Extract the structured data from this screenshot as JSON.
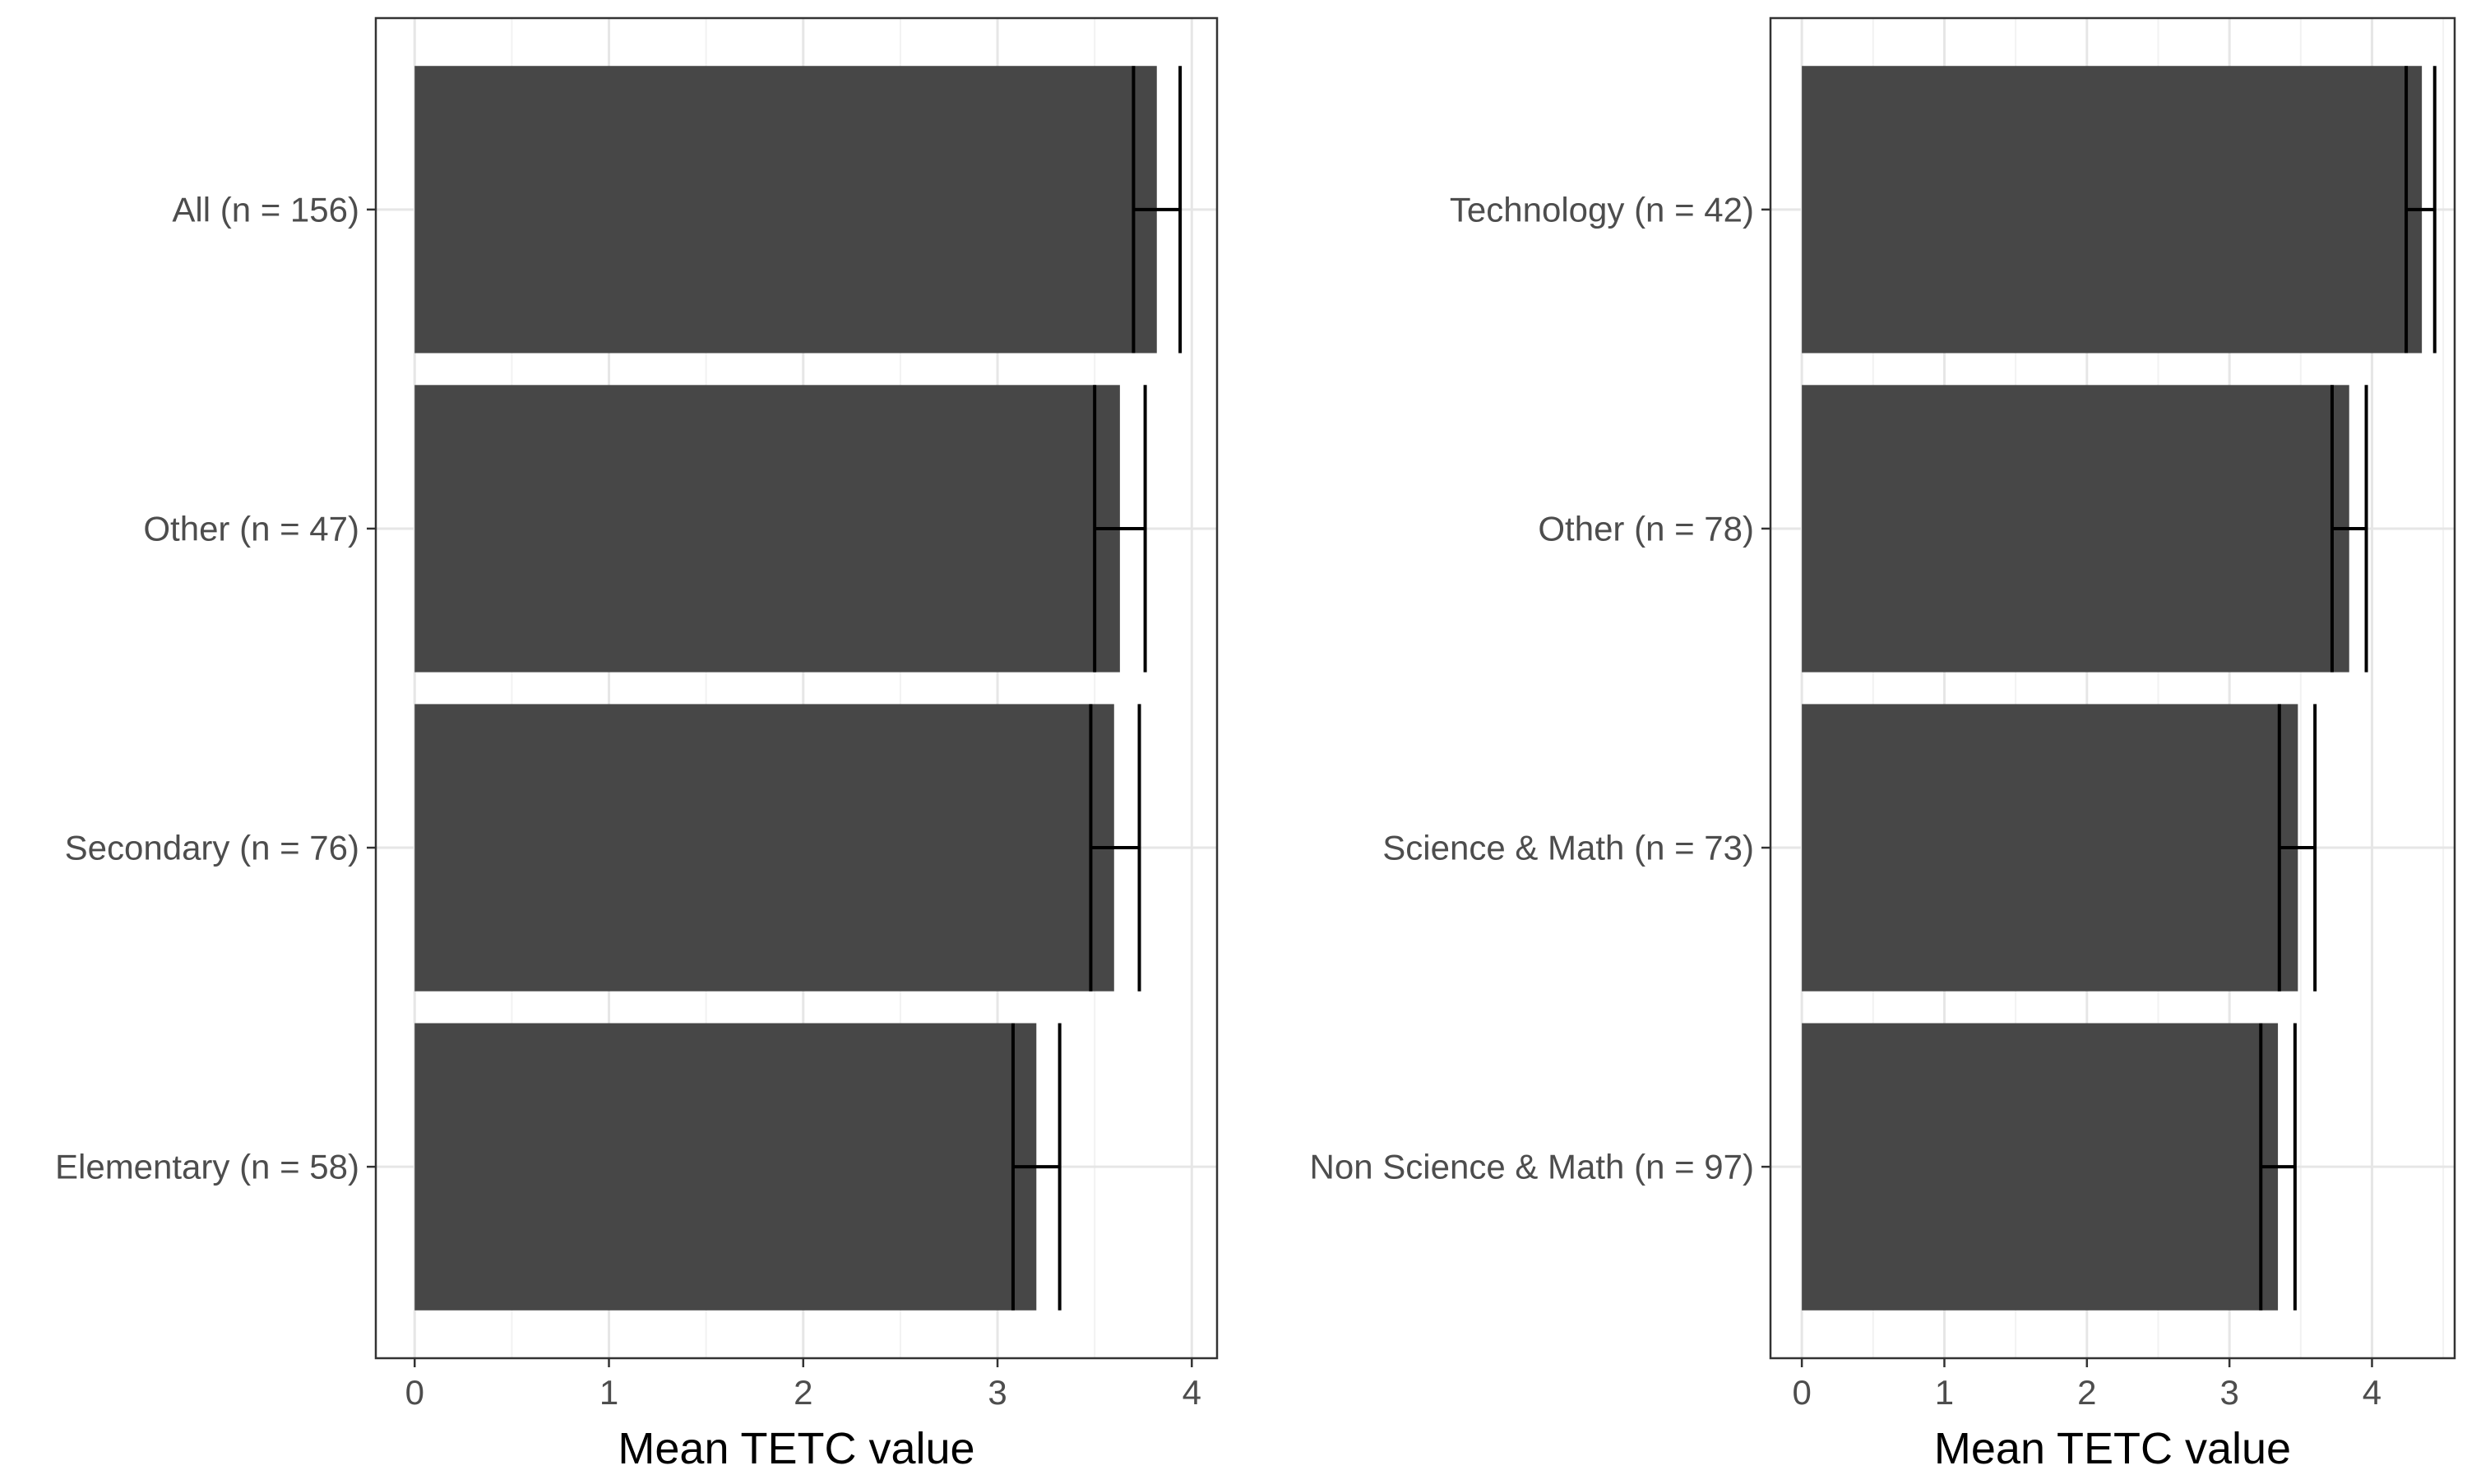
{
  "chart_data": [
    {
      "type": "bar",
      "orientation": "horizontal",
      "categories": [
        "Elementary (n = 58)",
        "Secondary (n = 76)",
        "Other (n = 47)",
        "All (n = 156)"
      ],
      "values": [
        3.2,
        3.6,
        3.63,
        3.82
      ],
      "error_low": [
        3.08,
        3.48,
        3.5,
        3.7
      ],
      "error_high": [
        3.32,
        3.73,
        3.76,
        3.94
      ],
      "xlabel": "Mean TETC value",
      "ylabel": "",
      "xlim": [
        -0.2,
        4.13
      ],
      "xticks": [
        0,
        1,
        2,
        3,
        4
      ],
      "xticklabels": [
        "0",
        "1",
        "2",
        "3",
        "4"
      ],
      "grid": true,
      "bar_color": "#474747",
      "errorbar_color": "#000000"
    },
    {
      "type": "bar",
      "orientation": "horizontal",
      "categories": [
        "Non Science & Math (n = 97)",
        "Science & Math (n = 73)",
        "Other (n = 78)",
        "Technology (n = 42)"
      ],
      "values": [
        3.34,
        3.48,
        3.84,
        4.35
      ],
      "error_low": [
        3.22,
        3.35,
        3.72,
        4.24
      ],
      "error_high": [
        3.46,
        3.6,
        3.96,
        4.44
      ],
      "xlabel": "Mean TETC value",
      "ylabel": "",
      "xlim": [
        -0.22,
        4.58
      ],
      "xticks": [
        0,
        1,
        2,
        3,
        4
      ],
      "xticklabels": [
        "0",
        "1",
        "2",
        "3",
        "4"
      ],
      "grid": true,
      "bar_color": "#474747",
      "errorbar_color": "#000000"
    }
  ]
}
